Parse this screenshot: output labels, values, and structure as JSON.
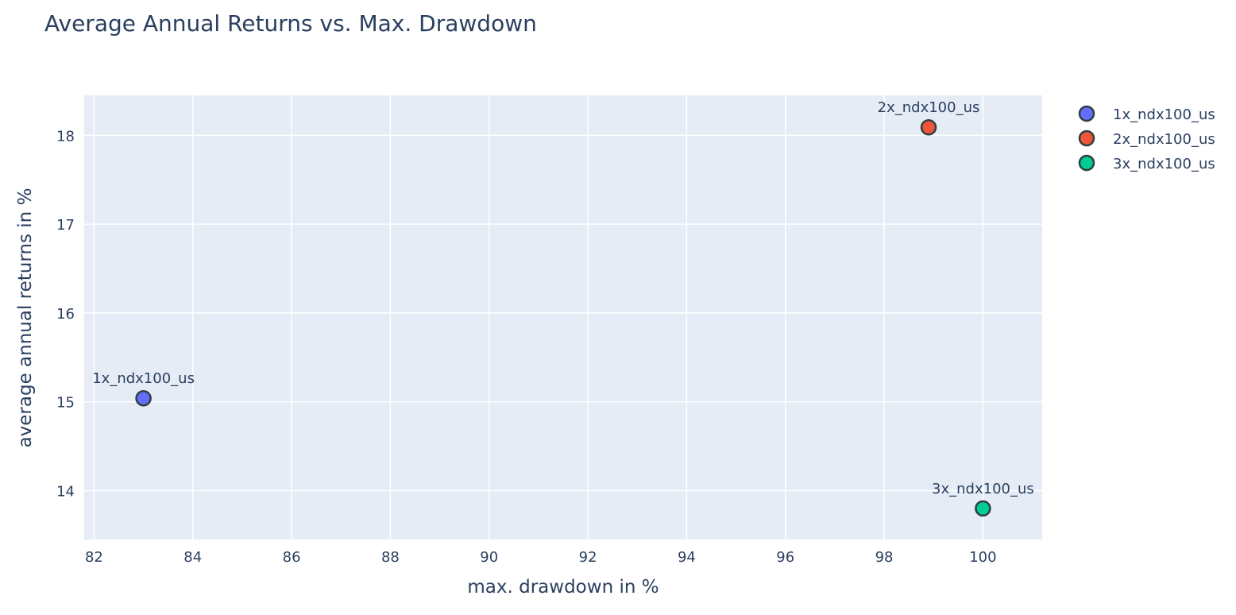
{
  "chart_data": {
    "type": "scatter",
    "title": "Average Annual Returns vs. Max. Drawdown",
    "xlabel": "max. drawdown in %",
    "ylabel": "average annual returns in %",
    "xlim": [
      81.8,
      101.2
    ],
    "ylim": [
      13.45,
      18.45
    ],
    "xticks": [
      82,
      84,
      86,
      88,
      90,
      92,
      94,
      96,
      98,
      100
    ],
    "yticks": [
      14,
      15,
      16,
      17,
      18
    ],
    "grid": true,
    "legend_position": "top-right",
    "series": [
      {
        "name": "1x_ndx100_us",
        "color": "#636efa",
        "points": [
          {
            "x": 83.0,
            "y": 15.04,
            "label": "1x_ndx100_us"
          }
        ]
      },
      {
        "name": "2x_ndx100_us",
        "color": "#ef553b",
        "points": [
          {
            "x": 98.9,
            "y": 18.09,
            "label": "2x_ndx100_us"
          }
        ]
      },
      {
        "name": "3x_ndx100_us",
        "color": "#00cc96",
        "points": [
          {
            "x": 100.0,
            "y": 13.8,
            "label": "3x_ndx100_us"
          }
        ]
      }
    ]
  }
}
